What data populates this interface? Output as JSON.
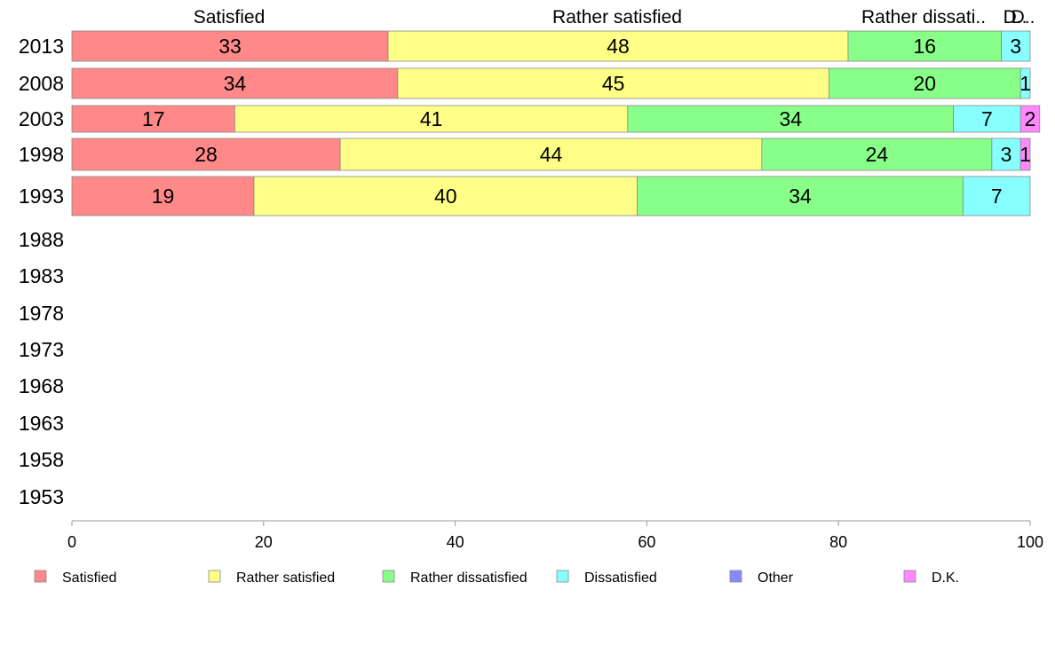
{
  "chart_data": {
    "type": "bar",
    "orientation": "horizontal",
    "stacked": true,
    "categories": [
      "2013",
      "2008",
      "2003",
      "1998",
      "1993",
      "1988",
      "1983",
      "1978",
      "1973",
      "1968",
      "1963",
      "1958",
      "1953"
    ],
    "series": [
      {
        "name": "Satisfied",
        "color": "#ff8888",
        "values": [
          33,
          34,
          17,
          28,
          19,
          null,
          null,
          null,
          null,
          null,
          null,
          null,
          null
        ]
      },
      {
        "name": "Rather satisfied",
        "color": "#ffff88",
        "values": [
          48,
          45,
          41,
          44,
          40,
          null,
          null,
          null,
          null,
          null,
          null,
          null,
          null
        ]
      },
      {
        "name": "Rather dissatisfied",
        "color": "#88ff88",
        "values": [
          16,
          20,
          34,
          24,
          34,
          null,
          null,
          null,
          null,
          null,
          null,
          null,
          null
        ]
      },
      {
        "name": "Dissatisfied",
        "color": "#88ffff",
        "values": [
          3,
          1,
          7,
          3,
          7,
          null,
          null,
          null,
          null,
          null,
          null,
          null,
          null
        ]
      },
      {
        "name": "Other",
        "color": "#8888ff",
        "values": [
          0,
          0,
          0,
          0,
          0,
          null,
          null,
          null,
          null,
          null,
          null,
          null,
          null
        ]
      },
      {
        "name": "D.K.",
        "color": "#ff88ff",
        "values": [
          0,
          0,
          2,
          1,
          0,
          null,
          null,
          null,
          null,
          null,
          null,
          null,
          null
        ]
      }
    ],
    "top_labels": [
      "Satisfied",
      "Rather satisfied",
      "Rather dissati..",
      "D..",
      "D.."
    ],
    "xlim": [
      0,
      100
    ],
    "xticks": [
      0,
      20,
      40,
      60,
      80,
      100
    ],
    "grid": false,
    "legend_position": "bottom"
  }
}
